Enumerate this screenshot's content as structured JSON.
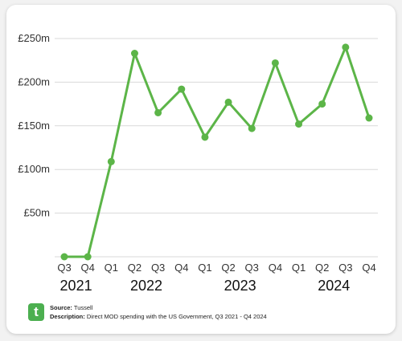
{
  "chart_data": {
    "type": "line",
    "categories": [
      "Q3",
      "Q4",
      "Q1",
      "Q2",
      "Q3",
      "Q4",
      "Q1",
      "Q2",
      "Q3",
      "Q4",
      "Q1",
      "Q2",
      "Q3",
      "Q4"
    ],
    "years": [
      "2021",
      "2022",
      "2023",
      "2024"
    ],
    "series": [
      {
        "values": [
          0,
          0,
          109,
          233,
          165,
          192,
          137,
          177,
          147,
          222,
          152,
          175,
          240,
          159
        ]
      }
    ],
    "yticks": [
      50,
      100,
      150,
      200,
      250
    ],
    "ytick_labels": [
      "£50m",
      "£100m",
      "£150m",
      "£200m",
      "£250m"
    ],
    "ylim": [
      0,
      250
    ],
    "grid": true,
    "line_color": "#5cb548"
  },
  "footer": {
    "logo_letter": "t",
    "source_label": "Source:",
    "source_value": "Tussell",
    "description_label": "Description:",
    "description_value": "Direct MOD spending with the US Government, Q3 2021 - Q4 2024"
  }
}
